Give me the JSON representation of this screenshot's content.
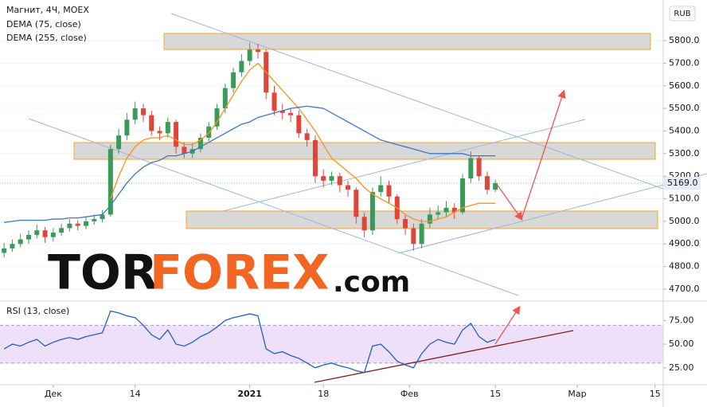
{
  "chart_data": [
    {
      "type": "candlestick",
      "title": "Магнит, 4Ч, MOEX",
      "y_unit": "RUB",
      "xlim": [
        -0.5,
        80.5
      ],
      "ylim": [
        4654,
        5980
      ],
      "yticks": [
        {
          "value": 4700,
          "label": "4700.0"
        },
        {
          "value": 4800,
          "label": "4800.0"
        },
        {
          "value": 4900,
          "label": "4900.0"
        },
        {
          "value": 5000,
          "label": "5000.0"
        },
        {
          "value": 5100,
          "label": "5100.0"
        },
        {
          "value": 5200,
          "label": "5200.0"
        },
        {
          "value": 5300,
          "label": "5300.0"
        },
        {
          "value": 5400,
          "label": "5400.0"
        },
        {
          "value": 5500,
          "label": "5500.0"
        },
        {
          "value": 5600,
          "label": "5600.0"
        },
        {
          "value": 5700,
          "label": "5700.0"
        },
        {
          "value": 5800,
          "label": "5800.0"
        }
      ],
      "grid": true,
      "up_color": "#3a9b59",
      "down_color": "#e0453a",
      "ohlc": [
        [
          4860,
          4905,
          4840,
          4880
        ],
        [
          4880,
          4920,
          4865,
          4900
        ],
        [
          4900,
          4945,
          4885,
          4920
        ],
        [
          4920,
          4960,
          4900,
          4940
        ],
        [
          4940,
          4985,
          4925,
          4960
        ],
        [
          4960,
          4975,
          4905,
          4930
        ],
        [
          4930,
          4970,
          4910,
          4950
        ],
        [
          4950,
          4990,
          4935,
          4970
        ],
        [
          4970,
          5010,
          4955,
          4990
        ],
        [
          4990,
          5005,
          4960,
          4980
        ],
        [
          4980,
          5020,
          4965,
          5000
        ],
        [
          5000,
          5030,
          4985,
          5010
        ],
        [
          5010,
          5050,
          4995,
          5030
        ],
        [
          5030,
          5340,
          5020,
          5320
        ],
        [
          5320,
          5410,
          5300,
          5380
        ],
        [
          5380,
          5480,
          5360,
          5450
        ],
        [
          5450,
          5530,
          5430,
          5500
        ],
        [
          5500,
          5520,
          5440,
          5470
        ],
        [
          5470,
          5490,
          5380,
          5400
        ],
        [
          5400,
          5420,
          5360,
          5390
        ],
        [
          5390,
          5460,
          5370,
          5440
        ],
        [
          5440,
          5450,
          5300,
          5330
        ],
        [
          5330,
          5350,
          5280,
          5300
        ],
        [
          5300,
          5345,
          5280,
          5320
        ],
        [
          5320,
          5390,
          5305,
          5370
        ],
        [
          5370,
          5440,
          5355,
          5420
        ],
        [
          5420,
          5520,
          5405,
          5500
        ],
        [
          5500,
          5610,
          5480,
          5590
        ],
        [
          5590,
          5680,
          5570,
          5660
        ],
        [
          5660,
          5740,
          5640,
          5710
        ],
        [
          5710,
          5790,
          5690,
          5760
        ],
        [
          5760,
          5785,
          5720,
          5750
        ],
        [
          5750,
          5760,
          5540,
          5570
        ],
        [
          5570,
          5600,
          5470,
          5490
        ],
        [
          5490,
          5520,
          5450,
          5480
        ],
        [
          5480,
          5500,
          5440,
          5470
        ],
        [
          5470,
          5490,
          5370,
          5390
        ],
        [
          5390,
          5410,
          5330,
          5360
        ],
        [
          5360,
          5380,
          5170,
          5200
        ],
        [
          5200,
          5230,
          5150,
          5180
        ],
        [
          5180,
          5220,
          5160,
          5200
        ],
        [
          5200,
          5215,
          5130,
          5160
        ],
        [
          5160,
          5180,
          5110,
          5140
        ],
        [
          5140,
          5150,
          4990,
          5020
        ],
        [
          5020,
          5040,
          4930,
          4960
        ],
        [
          4960,
          5150,
          4940,
          5130
        ],
        [
          5130,
          5200,
          5110,
          5160
        ],
        [
          5160,
          5180,
          5080,
          5110
        ],
        [
          5110,
          5120,
          4990,
          5010
        ],
        [
          5010,
          5030,
          4940,
          4970
        ],
        [
          4970,
          4990,
          4870,
          4900
        ],
        [
          4900,
          5010,
          4880,
          4990
        ],
        [
          4990,
          5060,
          4970,
          5030
        ],
        [
          5030,
          5070,
          5010,
          5040
        ],
        [
          5040,
          5090,
          5020,
          5060
        ],
        [
          5060,
          5080,
          5010,
          5040
        ],
        [
          5040,
          5210,
          5030,
          5190
        ],
        [
          5190,
          5310,
          5170,
          5280
        ],
        [
          5280,
          5290,
          5180,
          5200
        ],
        [
          5200,
          5220,
          5120,
          5140
        ],
        [
          5140,
          5185,
          5130,
          5169
        ]
      ],
      "last_label": "5169.0",
      "series": [
        {
          "name": "DEMA (75, close)",
          "color": "#f7931e",
          "values": [
            null,
            null,
            null,
            null,
            null,
            null,
            null,
            null,
            null,
            null,
            null,
            null,
            null,
            5100,
            5200,
            5280,
            5330,
            5360,
            5370,
            5370,
            5380,
            5360,
            5340,
            5340,
            5360,
            5390,
            5440,
            5500,
            5560,
            5620,
            5670,
            5700,
            5660,
            5620,
            5580,
            5540,
            5500,
            5450,
            5400,
            5340,
            5280,
            5250,
            5220,
            5190,
            5150,
            5120,
            5100,
            5080,
            5060,
            5030,
            5010,
            5000,
            5000,
            5010,
            5020,
            5040,
            5060,
            5070,
            5080,
            5080,
            5080
          ]
        },
        {
          "name": "DEMA (255, close)",
          "color": "#3f78c2",
          "values": [
            4995,
            5000,
            5005,
            5005,
            5005,
            5005,
            5010,
            5010,
            5015,
            5015,
            5020,
            5025,
            5030,
            5070,
            5120,
            5170,
            5210,
            5240,
            5260,
            5270,
            5290,
            5290,
            5300,
            5310,
            5330,
            5350,
            5370,
            5390,
            5410,
            5430,
            5440,
            5460,
            5470,
            5480,
            5490,
            5500,
            5505,
            5510,
            5505,
            5500,
            5480,
            5460,
            5440,
            5420,
            5400,
            5380,
            5360,
            5350,
            5340,
            5330,
            5320,
            5310,
            5300,
            5300,
            5300,
            5300,
            5300,
            5290,
            5290,
            5290,
            5290
          ]
        }
      ],
      "watermark": {
        "tor": "TOR",
        "forex": "FOREX",
        "com": ".com"
      }
    },
    {
      "type": "line",
      "title": "RSI (13, close)",
      "xlim": [
        -0.5,
        80.5
      ],
      "ylim": [
        8,
        93
      ],
      "yticks": [
        {
          "value": 25,
          "label": "25.00"
        },
        {
          "value": 50,
          "label": "50.00"
        },
        {
          "value": 75,
          "label": "75.00"
        }
      ],
      "band": [
        30,
        70
      ],
      "band_color": "#efe0fa",
      "xticks": [
        {
          "value": 6,
          "label": "Дек"
        },
        {
          "value": 16,
          "label": "14"
        },
        {
          "value": 30,
          "label": "2021"
        },
        {
          "value": 39,
          "label": "18"
        },
        {
          "value": 49.5,
          "label": "Фев"
        },
        {
          "value": 60,
          "label": "15"
        },
        {
          "value": 70,
          "label": "Мар"
        },
        {
          "value": 79.5,
          "label": "15"
        }
      ],
      "series": [
        {
          "name": "RSI",
          "color": "#1f5fce",
          "values": [
            45,
            50,
            48,
            52,
            55,
            48,
            52,
            55,
            57,
            55,
            58,
            60,
            62,
            85,
            83,
            80,
            78,
            70,
            60,
            55,
            65,
            50,
            48,
            52,
            58,
            62,
            68,
            75,
            78,
            80,
            82,
            80,
            45,
            40,
            42,
            38,
            35,
            30,
            25,
            28,
            30,
            27,
            25,
            22,
            20,
            48,
            50,
            42,
            32,
            28,
            25,
            40,
            50,
            55,
            52,
            50,
            65,
            72,
            58,
            52,
            55
          ]
        }
      ]
    }
  ]
}
